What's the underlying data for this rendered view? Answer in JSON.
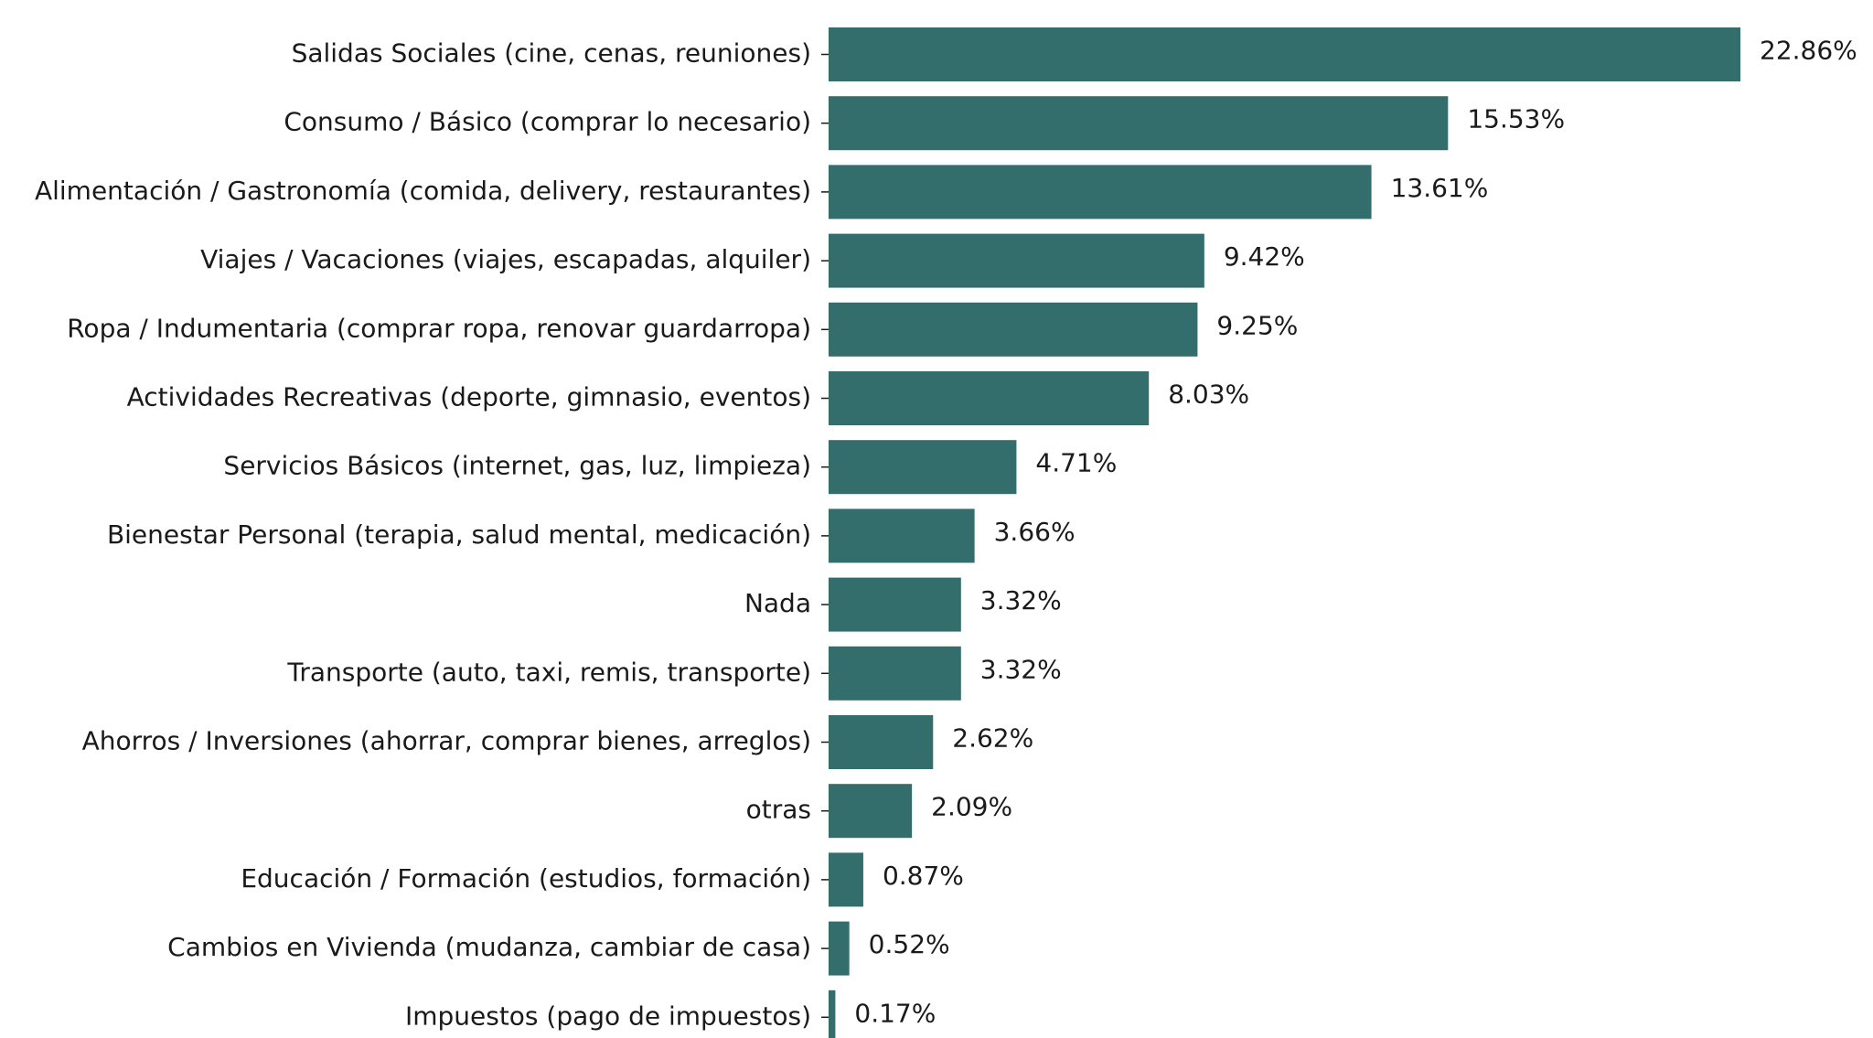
{
  "colors": {
    "bar": "#336e6d",
    "text": "#1a1a1a",
    "background": "#ffffff"
  },
  "chart_data": {
    "type": "bar",
    "orientation": "horizontal",
    "categories": [
      "Salidas Sociales (cine, cenas, reuniones)",
      "Consumo / Básico (comprar lo necesario)",
      "Alimentación / Gastronomía (comida, delivery, restaurantes)",
      "Viajes / Vacaciones (viajes, escapadas, alquiler)",
      "Ropa / Indumentaria (comprar ropa, renovar guardarropa)",
      "Actividades Recreativas (deporte, gimnasio, eventos)",
      "Servicios Básicos (internet, gas, luz, limpieza)",
      "Bienestar Personal (terapia, salud mental, medicación)",
      "Nada",
      "Transporte (auto, taxi, remis, transporte)",
      "Ahorros / Inversiones (ahorrar, comprar bienes, arreglos)",
      "otras",
      "Educación / Formación (estudios, formación)",
      "Cambios en Vivienda (mudanza, cambiar de casa)",
      "Impuestos (pago de impuestos)"
    ],
    "values": [
      22.86,
      15.53,
      13.61,
      9.42,
      9.25,
      8.03,
      4.71,
      3.66,
      3.32,
      3.32,
      2.62,
      2.09,
      0.87,
      0.52,
      0.17
    ],
    "value_labels": [
      "22.86%",
      "15.53%",
      "13.61%",
      "9.42%",
      "9.25%",
      "8.03%",
      "4.71%",
      "3.66%",
      "3.32%",
      "3.32%",
      "2.62%",
      "2.09%",
      "0.87%",
      "0.52%",
      "0.17%"
    ],
    "title": "",
    "xlabel": "",
    "ylabel": "",
    "xlim": [
      0,
      22.86
    ],
    "grid": false,
    "legend": "none"
  }
}
